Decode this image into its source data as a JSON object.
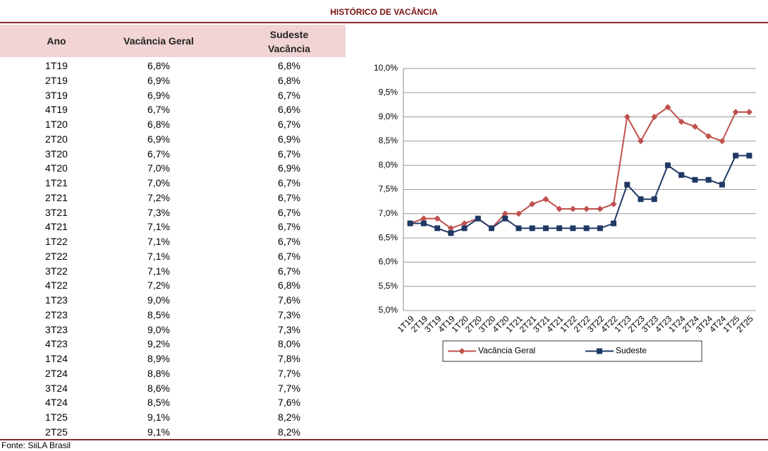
{
  "title": "HISTÓRICO DE VACÂNCIA",
  "table": {
    "header": [
      "Ano",
      "Vacância Geral",
      "Sudeste Vacância"
    ],
    "rows": [
      [
        "1T19",
        "6,8%",
        "6,8%"
      ],
      [
        "2T19",
        "6,9%",
        "6,8%"
      ],
      [
        "3T19",
        "6,9%",
        "6,7%"
      ],
      [
        "4T19",
        "6,7%",
        "6,6%"
      ],
      [
        "1T20",
        "6,8%",
        "6,7%"
      ],
      [
        "2T20",
        "6,9%",
        "6,9%"
      ],
      [
        "3T20",
        "6,7%",
        "6,7%"
      ],
      [
        "4T20",
        "7,0%",
        "6,9%"
      ],
      [
        "1T21",
        "7,0%",
        "6,7%"
      ],
      [
        "2T21",
        "7,2%",
        "6,7%"
      ],
      [
        "3T21",
        "7,3%",
        "6,7%"
      ],
      [
        "4T21",
        "7,1%",
        "6,7%"
      ],
      [
        "1T22",
        "7,1%",
        "6,7%"
      ],
      [
        "2T22",
        "7,1%",
        "6,7%"
      ],
      [
        "3T22",
        "7,1%",
        "6,7%"
      ],
      [
        "4T22",
        "7,2%",
        "6,8%"
      ],
      [
        "1T23",
        "9,0%",
        "7,6%"
      ],
      [
        "2T23",
        "8,5%",
        "7,3%"
      ],
      [
        "3T23",
        "9,0%",
        "7,3%"
      ],
      [
        "4T23",
        "9,2%",
        "8,0%"
      ],
      [
        "1T24",
        "8,9%",
        "7,8%"
      ],
      [
        "2T24",
        "8,8%",
        "7,7%"
      ],
      [
        "3T24",
        "8,6%",
        "7,7%"
      ],
      [
        "4T24",
        "8,5%",
        "7,6%"
      ],
      [
        "1T25",
        "9,1%",
        "8,2%"
      ],
      [
        "2T25",
        "9,1%",
        "8,2%"
      ]
    ]
  },
  "source": "Fonte: SiiLA Brasil",
  "chart_data": {
    "type": "line",
    "categories": [
      "1T19",
      "2T19",
      "3T19",
      "4T19",
      "1T20",
      "2T20",
      "3T20",
      "4T20",
      "1T21",
      "2T21",
      "3T21",
      "4T21",
      "1T22",
      "2T22",
      "3T22",
      "4T22",
      "1T23",
      "2T23",
      "3T23",
      "4T23",
      "1T24",
      "2T24",
      "3T24",
      "4T24",
      "1T25",
      "2T25"
    ],
    "series": [
      {
        "name": "Vacância Geral",
        "color": "#c0504d",
        "marker": "diamond",
        "values": [
          6.8,
          6.9,
          6.9,
          6.7,
          6.8,
          6.9,
          6.7,
          7.0,
          7.0,
          7.2,
          7.3,
          7.1,
          7.1,
          7.1,
          7.1,
          7.2,
          9.0,
          8.5,
          9.0,
          9.2,
          8.9,
          8.8,
          8.6,
          8.5,
          9.1,
          9.1
        ]
      },
      {
        "name": "Sudeste",
        "color": "#1f3864",
        "marker": "square",
        "values": [
          6.8,
          6.8,
          6.7,
          6.6,
          6.7,
          6.9,
          6.7,
          6.9,
          6.7,
          6.7,
          6.7,
          6.7,
          6.7,
          6.7,
          6.7,
          6.8,
          7.6,
          7.3,
          7.3,
          8.0,
          7.8,
          7.7,
          7.7,
          7.6,
          8.2,
          8.2
        ]
      }
    ],
    "ylim": [
      5.0,
      10.0
    ],
    "yticks": [
      {
        "value": 5.0,
        "label": "5,0%"
      },
      {
        "value": 5.5,
        "label": "5,5%"
      },
      {
        "value": 6.0,
        "label": "6,0%"
      },
      {
        "value": 6.5,
        "label": "6,5%"
      },
      {
        "value": 7.0,
        "label": "7,0%"
      },
      {
        "value": 7.5,
        "label": "7,5%"
      },
      {
        "value": 8.0,
        "label": "8,0%"
      },
      {
        "value": 8.5,
        "label": "8,5%"
      },
      {
        "value": 9.0,
        "label": "9,0%"
      },
      {
        "value": 9.5,
        "label": "9,5%"
      },
      {
        "value": 10.0,
        "label": "10,0%"
      }
    ],
    "grid": true,
    "legend": "bottom"
  }
}
